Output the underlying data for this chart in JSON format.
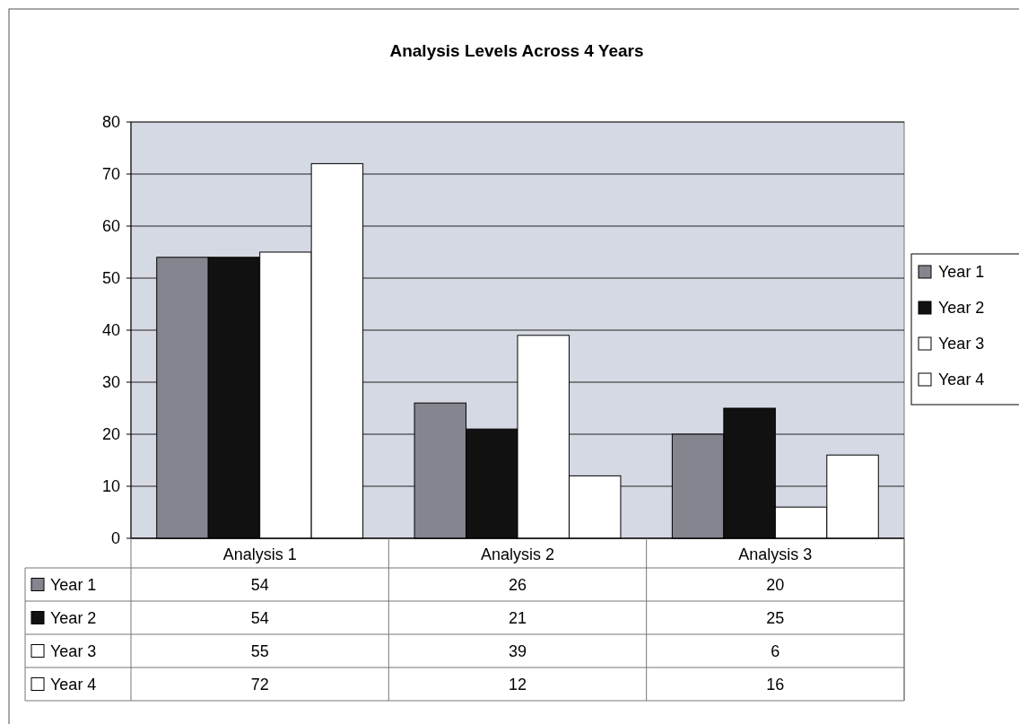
{
  "chart_data": {
    "type": "bar",
    "title": "Analysis Levels Across 4 Years",
    "categories": [
      "Analysis 1",
      "Analysis 2",
      "Analysis 3"
    ],
    "series": [
      {
        "name": "Year 1",
        "color": "#85858f",
        "values": [
          54,
          26,
          20
        ]
      },
      {
        "name": "Year 2",
        "color": "#111111",
        "values": [
          54,
          21,
          25
        ]
      },
      {
        "name": "Year 3",
        "color": "#ffffff",
        "values": [
          55,
          39,
          6
        ]
      },
      {
        "name": "Year 4",
        "color": "#ffffff",
        "values": [
          72,
          12,
          16
        ]
      }
    ],
    "ylim": [
      0,
      80
    ],
    "yticks": [
      0,
      10,
      20,
      30,
      40,
      50,
      60,
      70,
      80
    ],
    "grid": "y",
    "legend": "right",
    "data_labels": true
  }
}
